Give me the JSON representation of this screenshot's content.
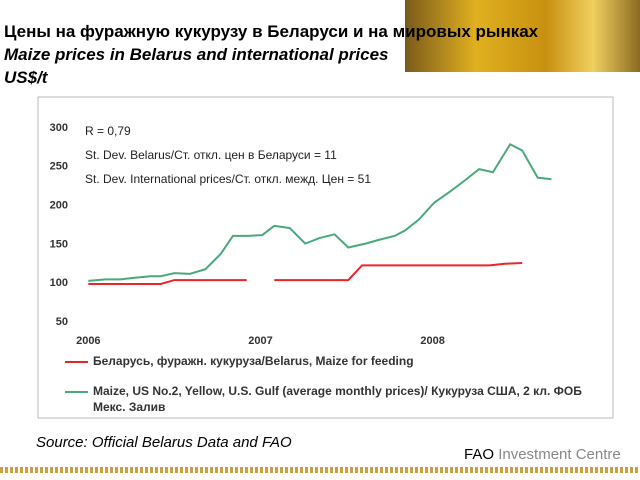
{
  "header": {
    "title_ru": "Цены на фуражную кукурузу в Беларуси и на мировых рынках",
    "title_en": "Maize prices in Belarus and international prices",
    "unit": "US$/t"
  },
  "chart_data": {
    "type": "line",
    "annotations": [
      "R = 0,79",
      "St. Dev. Belarus/Ст. откл. цен в Беларуси = 11",
      "St. Dev. International prices/Ст. откл. межд. Цен = 51"
    ],
    "xlim": [
      2005.94,
      2009.03
    ],
    "xticks": [
      2006,
      2007,
      2008
    ],
    "ylim": [
      50,
      300
    ],
    "yticks": [
      50,
      100,
      150,
      200,
      250,
      300
    ],
    "series": [
      {
        "name": "Беларусь, фуражн. кукуруза/Belarus, Maize for feeding",
        "color": "#e8262a",
        "x": [
          2006.0,
          2006.42,
          2006.5,
          2006.92,
          2007.0,
          2007.08,
          2007.51,
          2007.59,
          2008.33,
          2008.42,
          2008.52
        ],
        "values": [
          99,
          99,
          104,
          104,
          null,
          104,
          104,
          123,
          123,
          125,
          126
        ]
      },
      {
        "name": "Maize, US No.2, Yellow, U.S. Gulf (average monthly prices)/ Кукуруза США, 2 кл. ФОБ Мекс. Залив",
        "color": "#4aa97a",
        "x": [
          2006.0,
          2006.1,
          2006.19,
          2006.27,
          2006.36,
          2006.42,
          2006.5,
          2006.59,
          2006.68,
          2006.77,
          2006.84,
          2006.93,
          2007.01,
          2007.08,
          2007.17,
          2007.26,
          2007.34,
          2007.43,
          2007.51,
          2007.61,
          2007.69,
          2007.78,
          2007.84,
          2007.92,
          2008.01,
          2008.1,
          2008.19,
          2008.27,
          2008.35,
          2008.45,
          2008.52,
          2008.61,
          2008.69
        ],
        "values": [
          103,
          105,
          105,
          107,
          109,
          109,
          113,
          112,
          118,
          138,
          161,
          161,
          162,
          174,
          171,
          151,
          158,
          163,
          146,
          151,
          156,
          161,
          168,
          182,
          204,
          218,
          233,
          247,
          243,
          279,
          271,
          236,
          234
        ]
      }
    ]
  },
  "footer": {
    "source": "Source: Official Belarus Data and FAO",
    "org": "FAO",
    "org_rest": "Investment Centre"
  }
}
